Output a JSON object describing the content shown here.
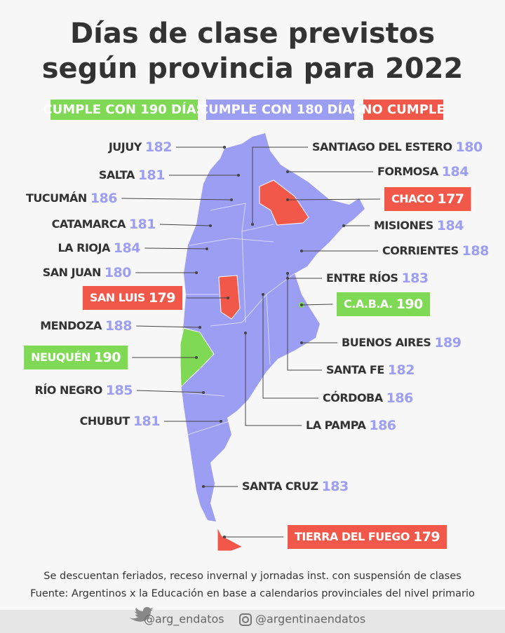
{
  "title": [
    "Días de clase previstos",
    "según provincia para 2022"
  ],
  "legend": [
    {
      "label": "CUMPLE CON 190 DÍAS",
      "color": "#7fd955"
    },
    {
      "label": "CUMPLE CON 180 DÍAS",
      "color": "#9c9ef4"
    },
    {
      "label": "NO CUMPLE",
      "color": "#f2584a"
    }
  ],
  "provinces": [
    {
      "name": "JUJUY",
      "days": 182,
      "color": "#9c9ef4"
    },
    {
      "name": "SALTA",
      "days": 181,
      "color": "#9c9ef4"
    },
    {
      "name": "TUCUMÁN",
      "days": 186,
      "color": "#9c9ef4"
    },
    {
      "name": "CATAMARCA",
      "days": 181,
      "color": "#9c9ef4"
    },
    {
      "name": "LA RIOJA",
      "days": 184,
      "color": "#9c9ef4"
    },
    {
      "name": "SAN JUAN",
      "days": 180,
      "color": "#9c9ef4"
    },
    {
      "name": "SAN LUIS",
      "days": 179,
      "color": "#f2584a"
    },
    {
      "name": "MENDOZA",
      "days": 188,
      "color": "#9c9ef4"
    },
    {
      "name": "NEUQUÉN",
      "days": 190,
      "color": "#7fd955"
    },
    {
      "name": "RÍO NEGRO",
      "days": 185,
      "color": "#9c9ef4"
    },
    {
      "name": "CHUBUT",
      "days": 181,
      "color": "#9c9ef4"
    },
    {
      "name": "SANTIAGO DEL ESTERO",
      "days": 180,
      "color": "#9c9ef4"
    },
    {
      "name": "FORMOSA",
      "days": 184,
      "color": "#9c9ef4"
    },
    {
      "name": "CHACO",
      "days": 177,
      "color": "#f2584a"
    },
    {
      "name": "MISIONES",
      "days": 184,
      "color": "#9c9ef4"
    },
    {
      "name": "CORRIENTES",
      "days": 188,
      "color": "#9c9ef4"
    },
    {
      "name": "ENTRE RÍOS",
      "days": 183,
      "color": "#9c9ef4"
    },
    {
      "name": "C.A.B.A.",
      "days": 190,
      "color": "#7fd955"
    },
    {
      "name": "BUENOS AIRES",
      "days": 189,
      "color": "#9c9ef4"
    },
    {
      "name": "SANTA FE",
      "days": 182,
      "color": "#9c9ef4"
    },
    {
      "name": "CÓRDOBA",
      "days": 186,
      "color": "#9c9ef4"
    },
    {
      "name": "LA PAMPA",
      "days": 186,
      "color": "#9c9ef4"
    },
    {
      "name": "SANTA CRUZ",
      "days": 183,
      "color": "#9c9ef4"
    },
    {
      "name": "TIERRA DEL FUEGO",
      "days": 179,
      "color": "#f2584a"
    }
  ],
  "notes": [
    "Se descuentan feriados, receso invernal y jornadas inst. con suspensión de clases",
    "Fuente: Argentinos x la Educación en base a calendarios provinciales del nivel primario"
  ],
  "social": [
    "@arg_endatos",
    "@argentinaendatos"
  ]
}
